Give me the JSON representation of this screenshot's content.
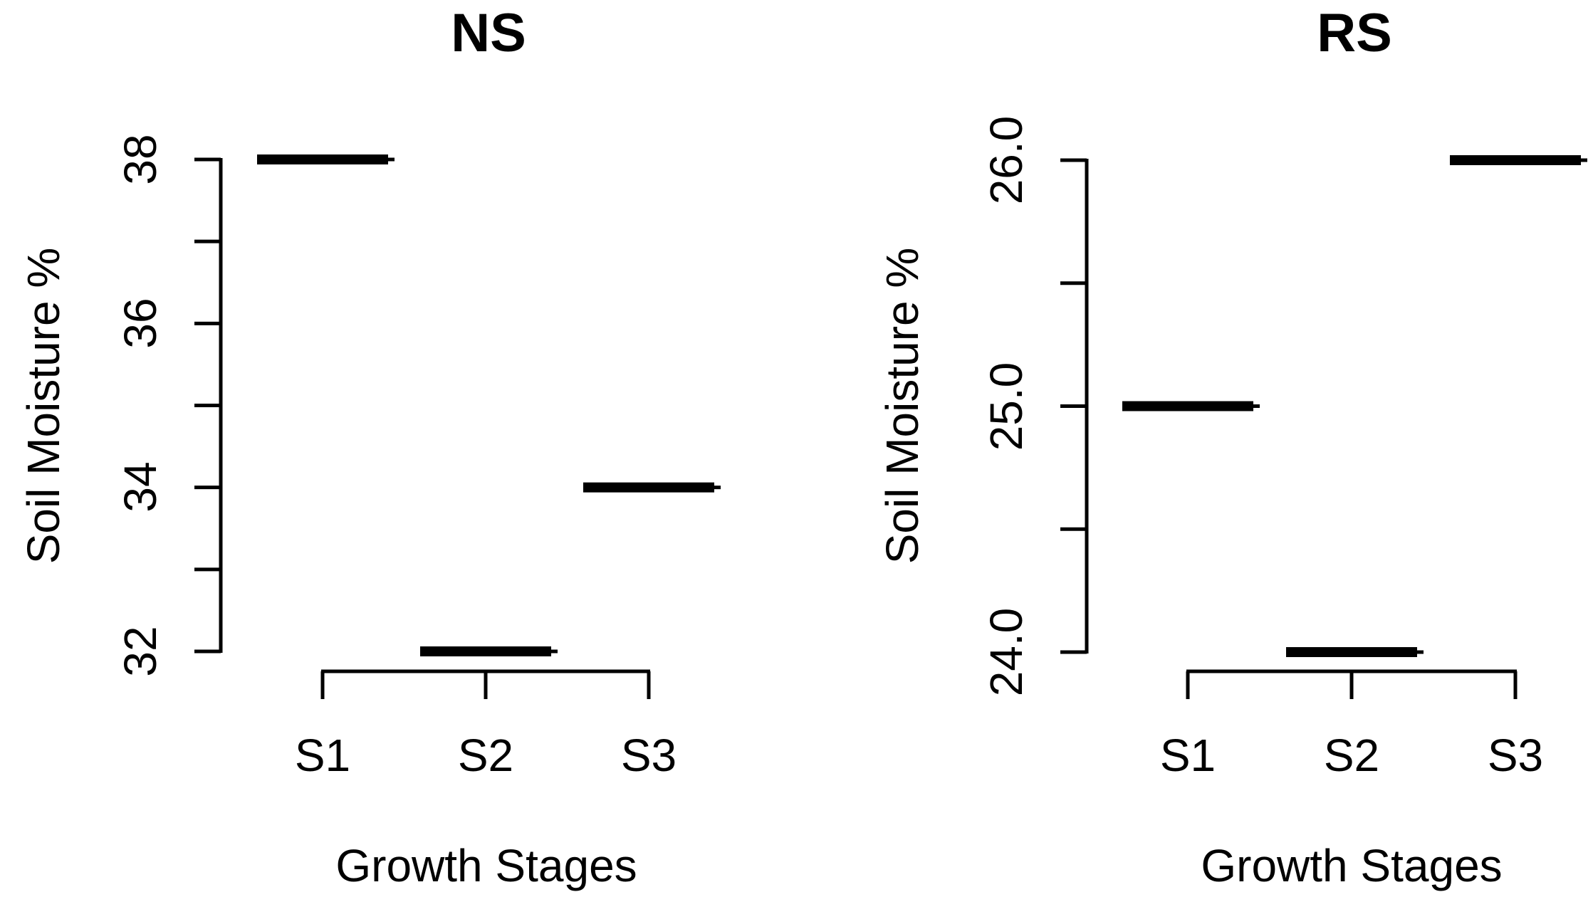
{
  "figure": {
    "background": "#ffffff",
    "text_color": "#000000",
    "panel_count": 2
  },
  "chart_data": [
    {
      "type": "scatter",
      "marker": "thick-horizontal-segment",
      "title": "NS",
      "xlabel": "Growth Stages",
      "ylabel": "Soil Moisture %",
      "categories": [
        "S1",
        "S2",
        "S3"
      ],
      "values": [
        38,
        32,
        34
      ],
      "ylim": [
        32,
        38
      ],
      "yticks": [
        {
          "value": 38,
          "label": "38"
        },
        {
          "value": 37,
          "label": ""
        },
        {
          "value": 36,
          "label": "36"
        },
        {
          "value": 35,
          "label": ""
        },
        {
          "value": 34,
          "label": "34"
        },
        {
          "value": 33,
          "label": ""
        },
        {
          "value": 32,
          "label": "32"
        }
      ],
      "grid": false,
      "legend_position": "none"
    },
    {
      "type": "scatter",
      "marker": "thick-horizontal-segment",
      "title": "RS",
      "xlabel": "Growth Stages",
      "ylabel": "Soil Moisture %",
      "categories": [
        "S1",
        "S2",
        "S3"
      ],
      "values": [
        25.0,
        24.0,
        26.0
      ],
      "ylim": [
        24.0,
        26.0
      ],
      "yticks": [
        {
          "value": 26.0,
          "label": "26.0"
        },
        {
          "value": 25.5,
          "label": ""
        },
        {
          "value": 25.0,
          "label": "25.0"
        },
        {
          "value": 24.5,
          "label": ""
        },
        {
          "value": 24.0,
          "label": "24.0"
        }
      ],
      "grid": false,
      "legend_position": "none"
    }
  ]
}
